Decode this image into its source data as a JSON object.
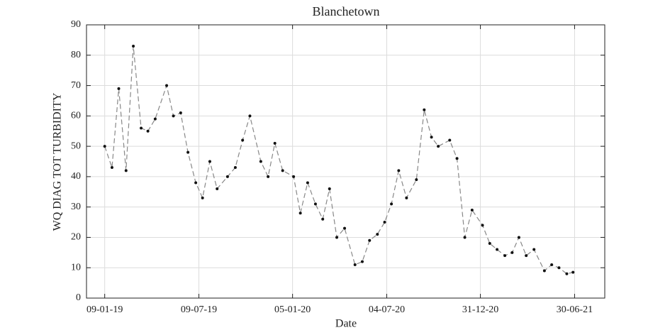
{
  "chart_data": {
    "type": "line",
    "title": "Blanchetown",
    "xlabel": "Date",
    "ylabel": "WQ DIAG TOT TURBIDITY",
    "x": [
      "2019-01-09",
      "2019-01-23",
      "2019-02-05",
      "2019-02-19",
      "2019-03-05",
      "2019-03-20",
      "2019-04-02",
      "2019-04-16",
      "2019-05-08",
      "2019-05-21",
      "2019-06-04",
      "2019-06-18",
      "2019-07-03",
      "2019-07-16",
      "2019-07-30",
      "2019-08-13",
      "2019-09-02",
      "2019-09-17",
      "2019-10-01",
      "2019-10-15",
      "2019-11-05",
      "2019-11-19",
      "2019-12-02",
      "2019-12-17",
      "2020-01-07",
      "2020-01-20",
      "2020-02-03",
      "2020-02-18",
      "2020-03-03",
      "2020-03-16",
      "2020-03-30",
      "2020-04-14",
      "2020-05-04",
      "2020-05-18",
      "2020-06-01",
      "2020-06-16",
      "2020-06-30",
      "2020-07-13",
      "2020-07-27",
      "2020-08-11",
      "2020-08-30",
      "2020-09-14",
      "2020-09-28",
      "2020-10-11",
      "2020-11-02",
      "2020-11-16",
      "2020-12-01",
      "2020-12-15",
      "2021-01-04",
      "2021-01-18",
      "2021-02-01",
      "2021-02-16",
      "2021-03-02",
      "2021-03-15",
      "2021-03-29",
      "2021-04-13",
      "2021-05-03",
      "2021-05-17",
      "2021-05-31",
      "2021-06-15",
      "2021-06-27"
    ],
    "series": [
      {
        "name": "WQ DIAG TOT TURBIDITY",
        "color": "#888888",
        "marker_color": "#111111",
        "values": [
          50,
          43,
          69,
          42,
          83,
          56,
          55,
          59,
          70,
          60,
          61,
          48,
          38,
          33,
          45,
          36,
          40,
          43,
          52,
          60,
          45,
          40,
          51,
          42,
          40,
          28,
          38,
          31,
          26,
          36,
          20,
          23,
          11,
          12,
          19,
          21,
          25,
          31,
          42,
          33,
          39,
          62,
          53,
          50,
          52,
          46,
          20,
          29,
          24,
          18,
          16,
          14,
          15,
          20,
          14,
          16,
          9,
          11,
          10,
          8,
          8.5
        ]
      }
    ],
    "xlim": [
      "2018-12-05",
      "2021-08-27"
    ],
    "xticks": [
      {
        "value": "2019-01-09",
        "label": "09-01-19"
      },
      {
        "value": "2019-07-09",
        "label": "09-07-19"
      },
      {
        "value": "2020-01-05",
        "label": "05-01-20"
      },
      {
        "value": "2020-07-04",
        "label": "04-07-20"
      },
      {
        "value": "2020-12-31",
        "label": "31-12-20"
      },
      {
        "value": "2021-06-30",
        "label": "30-06-21"
      }
    ],
    "ylim": [
      0,
      90
    ],
    "yticks": [
      0,
      10,
      20,
      30,
      40,
      50,
      60,
      70,
      80,
      90
    ],
    "grid": true
  }
}
